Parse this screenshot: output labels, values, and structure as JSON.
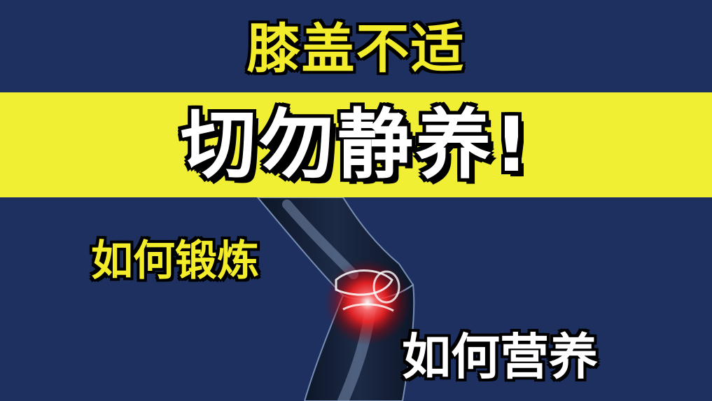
{
  "headline": {
    "top": "膝盖不适",
    "main": "切勿静养!"
  },
  "labels": {
    "exercise": "如何锻炼",
    "nutrition": "如何营养"
  },
  "colors": {
    "background": "#1e3060",
    "band": "#f1ef33",
    "accent_yellow": "#f2ec2b",
    "text_white": "#ffffff",
    "outline": "#000000",
    "pain_glow": "#ff2a2a"
  },
  "illustration": {
    "subject": "knee-xray-pain-icon"
  }
}
